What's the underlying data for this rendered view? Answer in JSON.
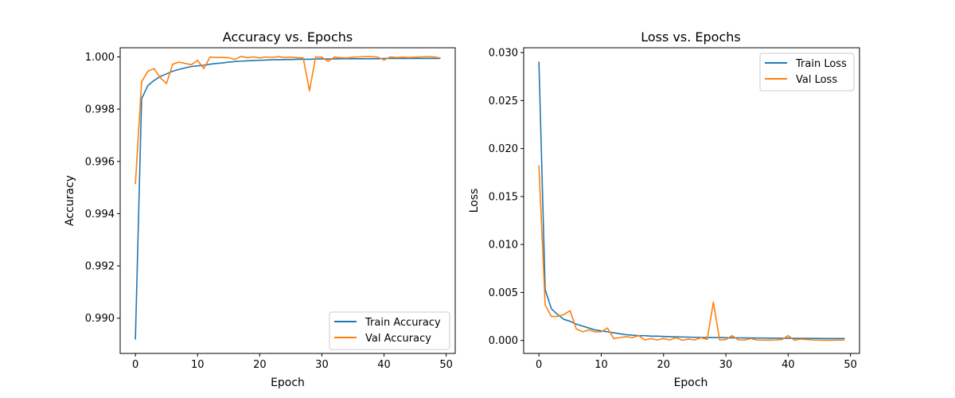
{
  "figure": {
    "colors": {
      "train": "#1f77b4",
      "val": "#ff7f0e"
    }
  },
  "chart_data": [
    {
      "type": "line",
      "title": "Accuracy vs. Epochs",
      "xlabel": "Epoch",
      "ylabel": "Accuracy",
      "xlim": [
        -2.45,
        51.45
      ],
      "ylim": [
        0.98865,
        1.00035
      ],
      "xticks": [
        0,
        10,
        20,
        30,
        40,
        50
      ],
      "xtick_labels": [
        "0",
        "10",
        "20",
        "30",
        "40",
        "50"
      ],
      "yticks": [
        0.99,
        0.992,
        0.994,
        0.996,
        0.998,
        1.0
      ],
      "ytick_labels": [
        "0.990",
        "0.992",
        "0.994",
        "0.996",
        "0.998",
        "1.000"
      ],
      "legend_position": "bottom-right",
      "x": [
        0,
        1,
        2,
        3,
        4,
        5,
        6,
        7,
        8,
        9,
        10,
        11,
        12,
        13,
        14,
        15,
        16,
        17,
        18,
        19,
        20,
        21,
        22,
        23,
        24,
        25,
        26,
        27,
        28,
        29,
        30,
        31,
        32,
        33,
        34,
        35,
        36,
        37,
        38,
        39,
        40,
        41,
        42,
        43,
        44,
        45,
        46,
        47,
        48,
        49
      ],
      "series": [
        {
          "name": "Train Accuracy",
          "color": "#1f77b4",
          "values": [
            0.9892,
            0.9984,
            0.9989,
            0.9991,
            0.99925,
            0.99935,
            0.99945,
            0.99952,
            0.99958,
            0.99963,
            0.99966,
            0.99968,
            0.99972,
            0.99975,
            0.99977,
            0.9998,
            0.99982,
            0.99984,
            0.99985,
            0.99986,
            0.99987,
            0.99988,
            0.99989,
            0.99989,
            0.9999,
            0.9999,
            0.99991,
            0.99991,
            0.99991,
            0.99992,
            0.99992,
            0.99992,
            0.99992,
            0.99993,
            0.99993,
            0.99993,
            0.99993,
            0.99993,
            0.99993,
            0.99993,
            0.99994,
            0.99994,
            0.99994,
            0.99994,
            0.99994,
            0.99994,
            0.99994,
            0.99994,
            0.99994,
            0.99994
          ]
        },
        {
          "name": "Val Accuracy",
          "color": "#ff7f0e",
          "values": [
            0.99515,
            0.99905,
            0.99945,
            0.99955,
            0.9992,
            0.99898,
            0.99972,
            0.9998,
            0.99975,
            0.9997,
            0.99987,
            0.99955,
            0.99999,
            0.99998,
            0.99998,
            0.99997,
            0.9999,
            1.00002,
            0.99997,
            1.0,
            0.99996,
            1.0,
            0.99998,
            1.00001,
            0.99998,
            0.99999,
            0.99997,
            0.99996,
            0.9987,
            1.0,
            0.99999,
            0.99983,
            0.99999,
            0.99997,
            0.99996,
            0.99999,
            1.0,
            1.00001,
            1.00001,
            0.99999,
            0.99988,
            1.0,
            0.99998,
            0.99999,
            0.99998,
            0.99999,
            1.0,
            1.00001,
            1.0,
            0.99996
          ]
        }
      ]
    },
    {
      "type": "line",
      "title": "Loss vs. Epochs",
      "xlabel": "Epoch",
      "ylabel": "Loss",
      "xlim": [
        -2.45,
        51.45
      ],
      "ylim": [
        -0.00135,
        0.0305
      ],
      "xticks": [
        0,
        10,
        20,
        30,
        40,
        50
      ],
      "xtick_labels": [
        "0",
        "10",
        "20",
        "30",
        "40",
        "50"
      ],
      "yticks": [
        0.0,
        0.005,
        0.01,
        0.015,
        0.02,
        0.025,
        0.03
      ],
      "ytick_labels": [
        "0.000",
        "0.005",
        "0.010",
        "0.015",
        "0.020",
        "0.025",
        "0.030"
      ],
      "legend_position": "top-right",
      "x": [
        0,
        1,
        2,
        3,
        4,
        5,
        6,
        7,
        8,
        9,
        10,
        11,
        12,
        13,
        14,
        15,
        16,
        17,
        18,
        19,
        20,
        21,
        22,
        23,
        24,
        25,
        26,
        27,
        28,
        29,
        30,
        31,
        32,
        33,
        34,
        35,
        36,
        37,
        38,
        39,
        40,
        41,
        42,
        43,
        44,
        45,
        46,
        47,
        48,
        49
      ],
      "series": [
        {
          "name": "Train Loss",
          "color": "#1f77b4",
          "values": [
            0.029,
            0.0053,
            0.0033,
            0.0027,
            0.0022,
            0.002,
            0.0017,
            0.0015,
            0.0013,
            0.0011,
            0.001,
            0.0009,
            0.0008,
            0.0007,
            0.0006,
            0.00055,
            0.0005,
            0.0005,
            0.00045,
            0.00045,
            0.00042,
            0.0004,
            0.00038,
            0.00036,
            0.00035,
            0.00033,
            0.00032,
            0.0003,
            0.0003,
            0.0003,
            0.00028,
            0.00027,
            0.00027,
            0.00026,
            0.00026,
            0.00025,
            0.00025,
            0.00024,
            0.00024,
            0.00023,
            0.00023,
            0.00022,
            0.00022,
            0.00022,
            0.00021,
            0.00021,
            0.0002,
            0.0002,
            0.0002,
            0.0002
          ]
        },
        {
          "name": "Val Loss",
          "color": "#ff7f0e",
          "values": [
            0.0182,
            0.0037,
            0.0025,
            0.0025,
            0.0027,
            0.0031,
            0.0012,
            0.0009,
            0.0011,
            0.0009,
            0.0009,
            0.0013,
            0.0002,
            0.0003,
            0.0004,
            0.0003,
            0.0005,
            5e-05,
            0.0002,
            5e-05,
            0.0002,
            5e-05,
            0.0003,
            2e-05,
            0.00015,
            5e-05,
            0.0003,
            0.0001,
            0.004,
            5e-05,
            0.0001,
            0.0005,
            5e-05,
            5e-05,
            0.0002,
            5e-05,
            3e-05,
            3e-05,
            5e-05,
            0.0001,
            0.0005,
            2e-05,
            0.00015,
            0.0001,
            5e-05,
            3e-05,
            2e-05,
            2e-05,
            3e-05,
            5e-05
          ]
        }
      ]
    }
  ]
}
